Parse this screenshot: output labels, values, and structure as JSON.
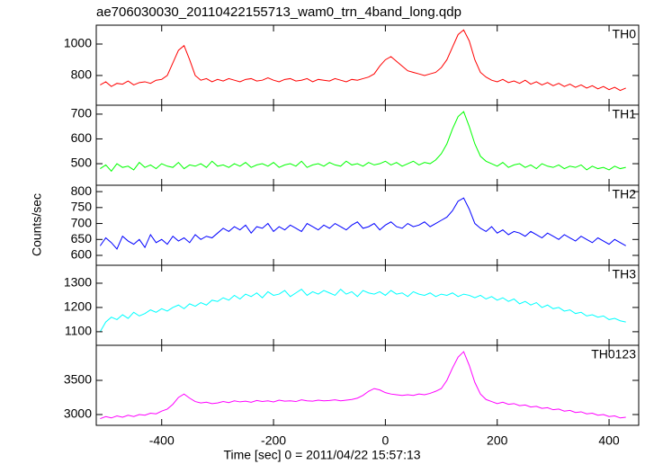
{
  "chart_data": {
    "type": "line",
    "title": "ae706030030_20110422155713_wam0_trn_4band_long.qdp",
    "xlabel": "Time [sec] 0 = 2011/04/22 15:57:13",
    "ylabel": "Counts/sec",
    "xlim": [
      -517,
      453
    ],
    "xticks": [
      -400,
      -200,
      0,
      200,
      400
    ],
    "x": [
      -510,
      -500,
      -490,
      -480,
      -470,
      -460,
      -450,
      -440,
      -430,
      -420,
      -410,
      -400,
      -390,
      -380,
      -370,
      -360,
      -350,
      -340,
      -330,
      -320,
      -310,
      -300,
      -290,
      -280,
      -270,
      -260,
      -250,
      -240,
      -230,
      -220,
      -210,
      -200,
      -190,
      -180,
      -170,
      -160,
      -150,
      -140,
      -130,
      -120,
      -110,
      -100,
      -90,
      -80,
      -70,
      -60,
      -50,
      -40,
      -30,
      -20,
      -10,
      0,
      10,
      20,
      30,
      40,
      50,
      60,
      70,
      80,
      90,
      100,
      110,
      120,
      130,
      140,
      150,
      160,
      170,
      180,
      190,
      200,
      210,
      220,
      230,
      240,
      250,
      260,
      270,
      280,
      290,
      300,
      310,
      320,
      330,
      340,
      350,
      360,
      370,
      380,
      390,
      400,
      410,
      420,
      430
    ],
    "series": [
      {
        "name": "TH0",
        "color": "#ff0000",
        "ylim": [
          611,
          1120
        ],
        "yticks": [
          800,
          1000
        ],
        "values": [
          740,
          760,
          730,
          750,
          745,
          765,
          740,
          755,
          760,
          750,
          770,
          775,
          800,
          880,
          960,
          990,
          900,
          800,
          770,
          780,
          760,
          775,
          765,
          780,
          770,
          760,
          775,
          780,
          765,
          770,
          785,
          770,
          760,
          775,
          780,
          765,
          770,
          780,
          760,
          775,
          770,
          765,
          780,
          770,
          760,
          775,
          770,
          780,
          790,
          810,
          860,
          900,
          920,
          890,
          860,
          830,
          820,
          810,
          800,
          810,
          820,
          850,
          900,
          980,
          1060,
          1090,
          1020,
          900,
          820,
          790,
          770,
          760,
          775,
          755,
          765,
          750,
          770,
          745,
          760,
          740,
          755,
          735,
          750,
          730,
          745,
          725,
          740,
          720,
          735,
          715,
          730,
          710,
          725,
          705,
          720
        ]
      },
      {
        "name": "TH1",
        "color": "#00ff00",
        "ylim": [
          413,
          736
        ],
        "yticks": [
          500,
          600,
          700
        ],
        "values": [
          480,
          495,
          470,
          500,
          485,
          490,
          475,
          505,
          485,
          495,
          480,
          500,
          490,
          485,
          505,
          480,
          495,
          490,
          500,
          485,
          510,
          490,
          495,
          485,
          500,
          490,
          505,
          485,
          495,
          500,
          490,
          505,
          485,
          495,
          500,
          490,
          510,
          485,
          495,
          500,
          490,
          505,
          495,
          490,
          510,
          495,
          500,
          490,
          505,
          495,
          500,
          510,
          495,
          505,
          490,
          500,
          510,
          495,
          505,
          500,
          515,
          540,
          580,
          640,
          690,
          710,
          650,
          580,
          530,
          510,
          500,
          490,
          505,
          485,
          495,
          500,
          485,
          495,
          480,
          500,
          490,
          485,
          495,
          480,
          490,
          485,
          495,
          475,
          490,
          480,
          485,
          475,
          490,
          480,
          485
        ]
      },
      {
        "name": "TH2",
        "color": "#0000ff",
        "ylim": [
          569,
          820
        ],
        "yticks": [
          600,
          650,
          700,
          750,
          800
        ],
        "values": [
          630,
          655,
          640,
          620,
          660,
          645,
          635,
          650,
          625,
          665,
          640,
          650,
          635,
          660,
          645,
          655,
          640,
          665,
          650,
          660,
          655,
          670,
          685,
          675,
          690,
          680,
          695,
          670,
          690,
          685,
          700,
          675,
          690,
          680,
          695,
          685,
          675,
          700,
          690,
          680,
          695,
          685,
          700,
          690,
          680,
          695,
          705,
          685,
          690,
          700,
          680,
          695,
          705,
          690,
          685,
          700,
          690,
          695,
          705,
          690,
          700,
          710,
          720,
          740,
          770,
          780,
          745,
          700,
          685,
          675,
          690,
          670,
          680,
          665,
          675,
          670,
          660,
          675,
          665,
          655,
          670,
          660,
          650,
          665,
          655,
          645,
          660,
          650,
          640,
          655,
          645,
          635,
          650,
          640,
          630
        ]
      },
      {
        "name": "TH3",
        "color": "#00ffff",
        "ylim": [
          1044,
          1374
        ],
        "yticks": [
          1100,
          1200,
          1300
        ],
        "values": [
          1100,
          1140,
          1160,
          1150,
          1170,
          1155,
          1180,
          1165,
          1175,
          1190,
          1180,
          1195,
          1185,
          1200,
          1210,
          1195,
          1215,
          1205,
          1220,
          1210,
          1230,
          1225,
          1240,
          1230,
          1250,
          1235,
          1255,
          1245,
          1260,
          1240,
          1265,
          1250,
          1255,
          1270,
          1245,
          1260,
          1275,
          1250,
          1265,
          1255,
          1270,
          1260,
          1250,
          1275,
          1255,
          1265,
          1245,
          1270,
          1260,
          1255,
          1265,
          1250,
          1270,
          1255,
          1260,
          1245,
          1265,
          1255,
          1250,
          1260,
          1245,
          1255,
          1250,
          1260,
          1245,
          1255,
          1250,
          1240,
          1250,
          1235,
          1245,
          1230,
          1240,
          1225,
          1235,
          1215,
          1225,
          1210,
          1220,
          1200,
          1210,
          1195,
          1200,
          1185,
          1190,
          1175,
          1180,
          1165,
          1170,
          1160,
          1165,
          1150,
          1155,
          1145,
          1140
        ]
      },
      {
        "name": "TH0123",
        "color": "#ff00ff",
        "ylim": [
          2842,
          4013
        ],
        "yticks": [
          3000,
          3500
        ],
        "values": [
          2940,
          2970,
          2950,
          2980,
          2960,
          2990,
          2970,
          3000,
          2990,
          3020,
          3010,
          3050,
          3080,
          3150,
          3250,
          3300,
          3240,
          3190,
          3170,
          3180,
          3160,
          3170,
          3190,
          3175,
          3200,
          3185,
          3195,
          3180,
          3205,
          3190,
          3200,
          3185,
          3210,
          3195,
          3200,
          3190,
          3215,
          3200,
          3195,
          3210,
          3200,
          3205,
          3215,
          3200,
          3210,
          3220,
          3240,
          3280,
          3340,
          3380,
          3360,
          3320,
          3300,
          3290,
          3280,
          3290,
          3280,
          3300,
          3290,
          3310,
          3340,
          3380,
          3500,
          3680,
          3840,
          3920,
          3720,
          3470,
          3300,
          3220,
          3190,
          3160,
          3180,
          3150,
          3160,
          3130,
          3140,
          3110,
          3120,
          3090,
          3100,
          3070,
          3080,
          3050,
          3060,
          3030,
          3040,
          3010,
          3020,
          2990,
          3000,
          2970,
          2980,
          2950,
          2960
        ]
      }
    ]
  }
}
